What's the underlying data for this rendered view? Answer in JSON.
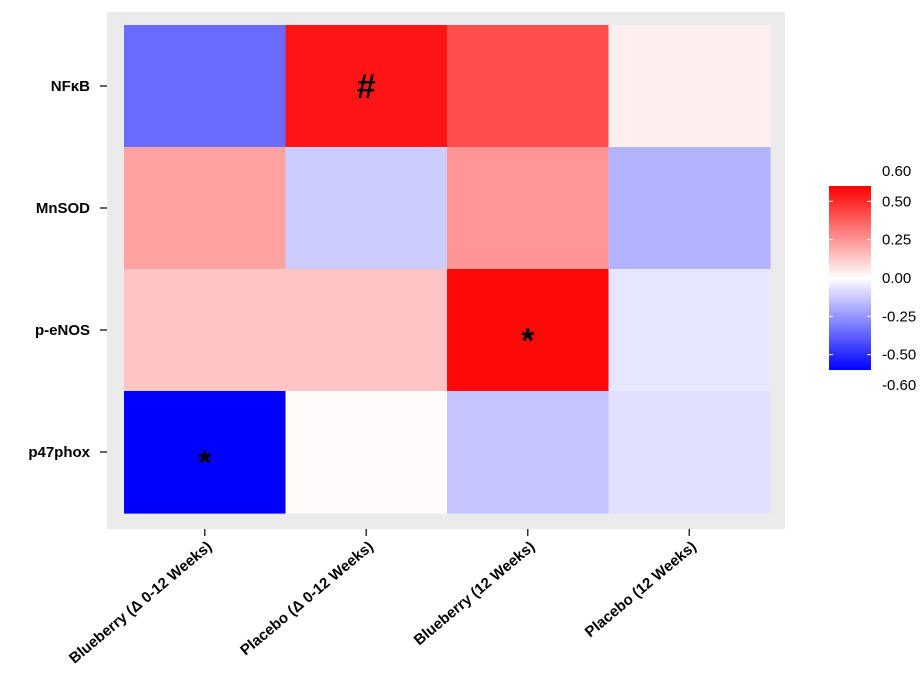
{
  "chart_data": {
    "type": "heatmap",
    "x_categories": [
      "Blueberry (Δ 0-12 Weeks)",
      "Placebo (Δ 0-12 Weeks)",
      "Blueberry (12 Weeks)",
      "Placebo (12 Weeks)"
    ],
    "y_categories": [
      "NFκB",
      "MnSOD",
      "p-eNOS",
      "p47phox"
    ],
    "values": [
      [
        -0.35,
        0.55,
        0.42,
        0.04
      ],
      [
        0.22,
        -0.12,
        0.25,
        -0.18
      ],
      [
        0.14,
        0.14,
        0.58,
        -0.06
      ],
      [
        -0.6,
        0.01,
        -0.14,
        -0.07
      ]
    ],
    "annotations": [
      {
        "row": 0,
        "col": 1,
        "text": "#"
      },
      {
        "row": 2,
        "col": 2,
        "text": "*"
      },
      {
        "row": 3,
        "col": 0,
        "text": "*"
      }
    ],
    "legend": {
      "ticks": [
        "0.60",
        "0.50",
        "0.25",
        "0.00",
        "-0.25",
        "-0.50",
        "-0.60"
      ],
      "tick_values": [
        0.6,
        0.5,
        0.25,
        0.0,
        -0.25,
        -0.5,
        -0.6
      ],
      "range": [
        -0.6,
        0.6
      ],
      "placement": "right",
      "colors": {
        "low": "#0000FF",
        "mid": "#FFFFFF",
        "high": "#FF0000"
      }
    },
    "panel_background": "#EBEBEB"
  }
}
